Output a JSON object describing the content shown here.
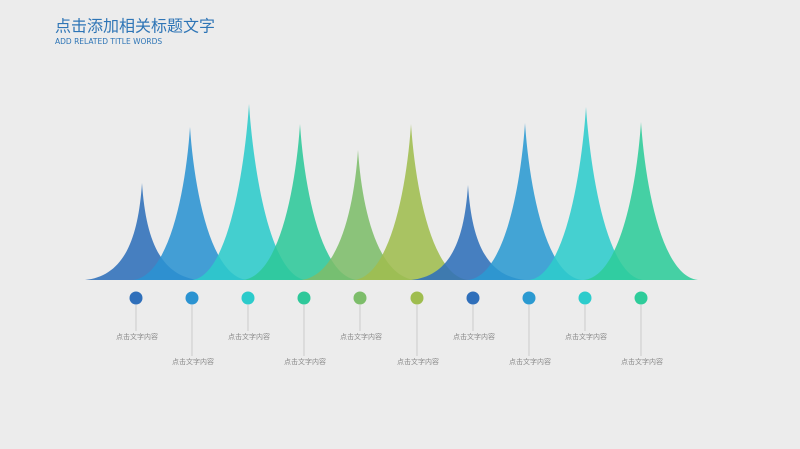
{
  "header": {
    "title": "点击添加相关标题文字",
    "subtitle": "ADD RELATED TITLE WORDS"
  },
  "items": [
    {
      "label": "点击文字内容"
    },
    {
      "label": "点击文字内容"
    },
    {
      "label": "点击文字内容"
    },
    {
      "label": "点击文字内容"
    },
    {
      "label": "点击文字内容"
    },
    {
      "label": "点击文字内容"
    },
    {
      "label": "点击文字内容"
    },
    {
      "label": "点击文字内容"
    },
    {
      "label": "点击文字内容"
    },
    {
      "label": "点击文字内容"
    }
  ]
}
